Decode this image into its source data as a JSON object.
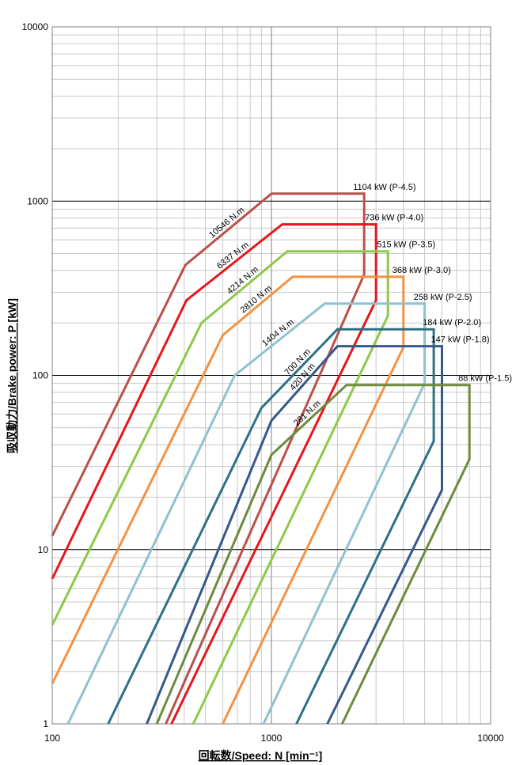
{
  "chart_data": {
    "type": "line",
    "xscale": "log",
    "yscale": "log",
    "xlim": [
      100,
      10000
    ],
    "ylim": [
      1,
      10000
    ],
    "grid": true,
    "xlabel": "回転数/Speed: N [min⁻¹]",
    "ylabel": "吸収動力/Brake power: P [kW]",
    "x_ticks": [
      "100",
      "1000",
      "10000"
    ],
    "y_ticks": [
      "1",
      "10",
      "100",
      "1000",
      "10000"
    ],
    "series": [
      {
        "color": "#b9504a",
        "power_label": "1104 kW (P-4.5)",
        "torque_label": "10546 N.m",
        "envelope": [
          [
            100,
            12
          ],
          [
            405,
            430
          ],
          [
            1000,
            1104
          ],
          [
            2650,
            1104
          ],
          [
            2650,
            380
          ],
          [
            330,
            1
          ]
        ]
      },
      {
        "color": "#e8151b",
        "power_label": "736 kW (P-4.0)",
        "torque_label": "6337 N.m",
        "envelope": [
          [
            100,
            6.8
          ],
          [
            410,
            270
          ],
          [
            1120,
            736
          ],
          [
            3000,
            736
          ],
          [
            3000,
            270
          ],
          [
            350,
            1
          ]
        ]
      },
      {
        "color": "#8ec84a",
        "power_label": "515 kW (P-3.5)",
        "torque_label": "4214 N.m",
        "envelope": [
          [
            100,
            3.7
          ],
          [
            480,
            200
          ],
          [
            1180,
            515
          ],
          [
            3400,
            515
          ],
          [
            3400,
            220
          ],
          [
            440,
            1
          ]
        ]
      },
      {
        "color": "#f39244",
        "power_label": "368 kW (P-3.0)",
        "torque_label": "2810 N.m",
        "envelope": [
          [
            100,
            1.7
          ],
          [
            600,
            170
          ],
          [
            1250,
            368
          ],
          [
            4000,
            368
          ],
          [
            4000,
            145
          ],
          [
            600,
            1
          ]
        ]
      },
      {
        "color": "#8ec1d1",
        "power_label": "258 kW (P-2.5)",
        "torque_label": "1404 N.m",
        "envelope": [
          [
            118,
            1
          ],
          [
            680,
            100
          ],
          [
            1750,
            258
          ],
          [
            5000,
            258
          ],
          [
            5000,
            90
          ],
          [
            920,
            1
          ]
        ]
      },
      {
        "color": "#2e7086",
        "power_label": "184 kW (P-2.0)",
        "torque_label": "700 N.m",
        "envelope": [
          [
            180,
            1
          ],
          [
            900,
            65
          ],
          [
            2000,
            184
          ],
          [
            5500,
            184
          ],
          [
            5500,
            42
          ],
          [
            1300,
            1
          ]
        ]
      },
      {
        "color": "#35598a",
        "power_label": "147 kW (P-1.8)",
        "torque_label": "420 N.m",
        "envelope": [
          [
            270,
            1
          ],
          [
            1000,
            55
          ],
          [
            2000,
            147
          ],
          [
            6000,
            147
          ],
          [
            6000,
            22
          ],
          [
            1800,
            1
          ]
        ]
      },
      {
        "color": "#6e8a3e",
        "power_label": "88 kW (P-1.5)",
        "torque_label": "281 N.m",
        "envelope": [
          [
            300,
            1
          ],
          [
            1000,
            35
          ],
          [
            2200,
            88
          ],
          [
            8000,
            88
          ],
          [
            8000,
            33
          ],
          [
            2100,
            1
          ]
        ]
      }
    ]
  }
}
